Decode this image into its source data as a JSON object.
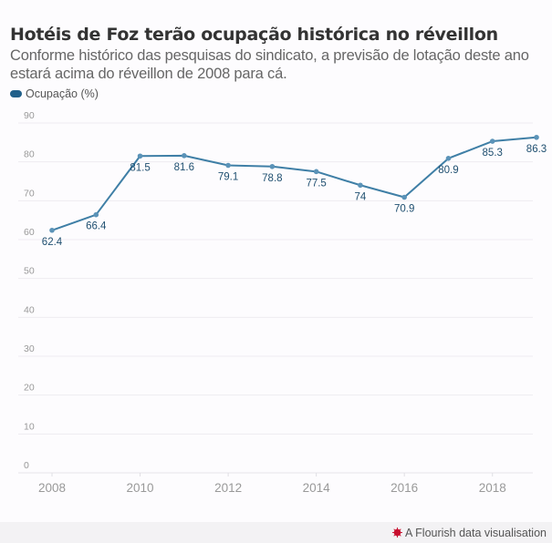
{
  "header": {
    "title": "Hotéis de Foz terão ocupação histórica no réveillon",
    "subtitle": "Conforme histórico das pesquisas do sindicato, a previsão de lotação deste ano estará acima do réveillon de 2008 para cá."
  },
  "legend": {
    "items": [
      {
        "label": "Ocupação (%)",
        "color": "#21608a"
      }
    ]
  },
  "footer": {
    "credit": "A Flourish data visualisation",
    "icon": "flourish-logo-icon"
  },
  "chart_data": {
    "type": "line",
    "title": "Hotéis de Foz terão ocupação histórica no réveillon",
    "xlabel": "",
    "ylabel": "",
    "x": [
      2008,
      2009,
      2010,
      2011,
      2012,
      2013,
      2014,
      2015,
      2016,
      2017,
      2018,
      2019
    ],
    "series": [
      {
        "name": "Ocupação (%)",
        "color": "#3f7fa6",
        "values": [
          62.4,
          66.4,
          81.5,
          81.6,
          79.1,
          78.8,
          77.5,
          74,
          70.9,
          80.9,
          85.3,
          86.3
        ],
        "labels": [
          "62.4",
          "66.4",
          "81.5",
          "81.6",
          "79.1",
          "78.8",
          "77.5",
          "74",
          "70.9",
          "80.9",
          "85.3",
          "86.3"
        ]
      }
    ],
    "ylim": [
      0,
      90
    ],
    "xlim": [
      2008,
      2019
    ],
    "y_ticks": [
      0,
      10,
      20,
      30,
      40,
      50,
      60,
      70,
      80,
      90
    ],
    "x_ticks": [
      2008,
      2010,
      2012,
      2014,
      2016,
      2018
    ],
    "grid": true,
    "legend_position": "top-left",
    "label_color": "#1f4f70",
    "axis_text_color": "#999999"
  }
}
